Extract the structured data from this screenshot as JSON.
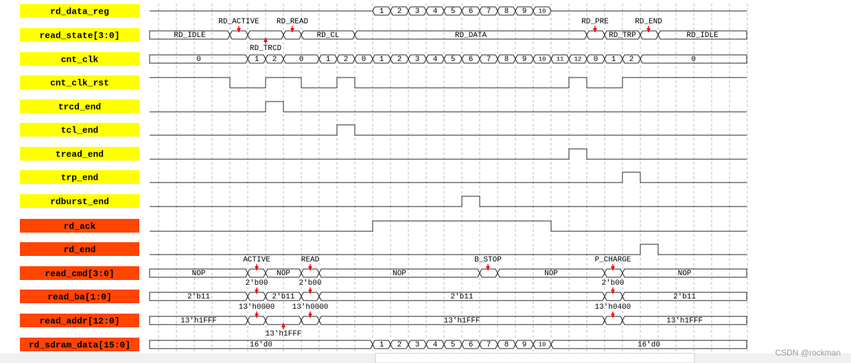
{
  "signals": [
    {
      "name": "rd_data_reg",
      "values": [
        "1",
        "2",
        "3",
        "4",
        "5",
        "6",
        "7",
        "8",
        "9",
        "10"
      ]
    },
    {
      "name": "read_state[3:0]",
      "values": [
        "RD_IDLE",
        "RD_CL",
        "RD_DATA",
        "RD_TRP",
        "RD_IDLE"
      ],
      "annotations": [
        "RD_ACTIVE",
        "RD_TRCD",
        "RD_READ",
        "RD_PRE",
        "RD_END"
      ]
    },
    {
      "name": "cnt_clk",
      "values": [
        "0",
        "1",
        "2",
        "0",
        "1",
        "2",
        "0",
        "1",
        "2",
        "3",
        "4",
        "5",
        "6",
        "7",
        "8",
        "9",
        "10",
        "11",
        "12",
        "0",
        "1",
        "2",
        "0"
      ]
    },
    {
      "name": "cnt_clk_rst"
    },
    {
      "name": "trcd_end"
    },
    {
      "name": "tcl_end"
    },
    {
      "name": "tread_end"
    },
    {
      "name": "trp_end"
    },
    {
      "name": "rdburst_end"
    },
    {
      "name": "rd_ack"
    },
    {
      "name": "rd_end"
    },
    {
      "name": "read_cmd[3:0]",
      "values": [
        "NOP",
        "NOP",
        "NOP",
        "NOP",
        "NOP"
      ],
      "annotations": [
        "ACTIVE",
        "READ",
        "B_STOP",
        "P_CHARGE"
      ]
    },
    {
      "name": "read_ba[1:0]",
      "values": [
        "2'b11",
        "2'b11",
        "2'b11",
        "2'b11"
      ],
      "annotations": [
        "2'b00",
        "2'b00",
        "2'b00"
      ]
    },
    {
      "name": "read_addr[12:0]",
      "values": [
        "13'h1FFF",
        "13'h1FFF",
        "13'h1FFF"
      ],
      "annotations": [
        "13'h0000",
        "13'h1FFF",
        "13'h0000",
        "13'h0400"
      ]
    },
    {
      "name": "rd_sdram_data[15:0]",
      "values": [
        "16'd0",
        "1",
        "2",
        "3",
        "4",
        "5",
        "6",
        "7",
        "8",
        "9",
        "10",
        "16'd0"
      ]
    }
  ],
  "watermark": "CSDN @rockman"
}
